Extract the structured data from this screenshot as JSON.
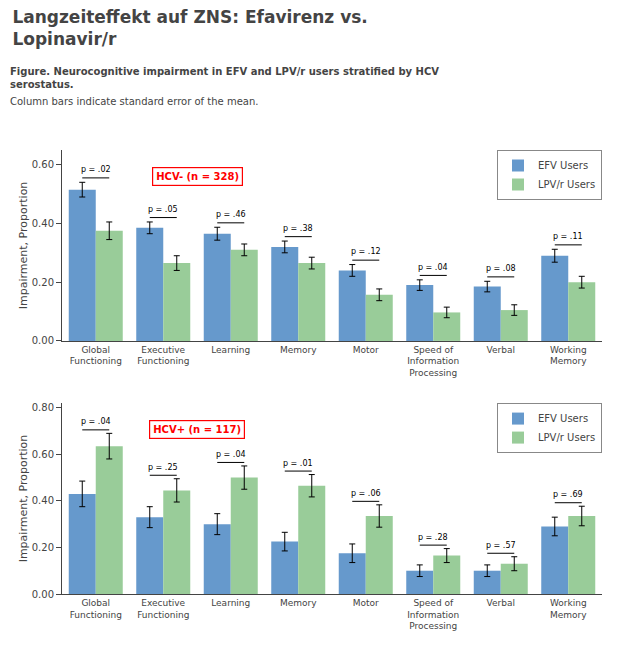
{
  "title": "Langzeiteffekt auf ZNS: Efavirenz vs.\nLopinavir/r",
  "subtitle": "Figure. Neurocognitive impairment in EFV and LPV/r users stratified by HCV\nserostatus.",
  "annotations": [
    "Column bars indicate standard error of the mean."
  ],
  "chart_data": [
    {
      "type": "bar",
      "categories": [
        "Global\nFunctioning",
        "Executive\nFunctioning",
        "Learning",
        "Memory",
        "Motor",
        "Speed of\nInformation\nProcessing",
        "Verbal",
        "Working\nMemory"
      ],
      "series": [
        {
          "name": "EFV Users",
          "color": "#6699CC",
          "values": [
            0.515,
            0.385,
            0.365,
            0.32,
            0.24,
            0.19,
            0.185,
            0.29
          ],
          "errors": [
            0.025,
            0.02,
            0.022,
            0.02,
            0.02,
            0.018,
            0.018,
            0.022
          ]
        },
        {
          "name": "LPV/r Users",
          "color": "#99CC99",
          "values": [
            0.375,
            0.265,
            0.31,
            0.265,
            0.157,
            0.097,
            0.105,
            0.2
          ],
          "errors": [
            0.03,
            0.025,
            0.02,
            0.02,
            0.02,
            0.018,
            0.018,
            0.02
          ]
        }
      ],
      "p_values": [
        "p = .02",
        "p = .05",
        "p = .46",
        "p = .38",
        "p = .12",
        "p = .04",
        "p = .08",
        "p = .11"
      ],
      "annotations": [
        {
          "text": "HCV- (n = 328)",
          "color": "red"
        }
      ],
      "ylabel": "Impairment, Proportion",
      "ylim": [
        0.0,
        0.65
      ],
      "yticks": [
        {
          "value": 0.0,
          "label": "0.00"
        },
        {
          "value": 0.2,
          "label": "0.20"
        },
        {
          "value": 0.4,
          "label": "0.40"
        },
        {
          "value": 0.6,
          "label": "0.60"
        }
      ],
      "grid": false,
      "legend": "upper right"
    },
    {
      "type": "bar",
      "categories": [
        "Global\nFunctioning",
        "Executive\nFunctioning",
        "Learning",
        "Memory",
        "Motor",
        "Speed of\nInformation\nProcessing",
        "Verbal",
        "Working\nMemory"
      ],
      "series": [
        {
          "name": "EFV Users",
          "color": "#6699CC",
          "values": [
            0.43,
            0.33,
            0.3,
            0.225,
            0.175,
            0.1,
            0.1,
            0.29
          ],
          "errors": [
            0.055,
            0.045,
            0.045,
            0.04,
            0.04,
            0.025,
            0.025,
            0.04
          ]
        },
        {
          "name": "LPV/r Users",
          "color": "#99CC99",
          "values": [
            0.635,
            0.445,
            0.5,
            0.465,
            0.335,
            0.165,
            0.13,
            0.335
          ],
          "errors": [
            0.055,
            0.05,
            0.05,
            0.048,
            0.048,
            0.03,
            0.03,
            0.042
          ]
        }
      ],
      "p_values": [
        "p = .04",
        "p = .25",
        "p = .04",
        "p = .01",
        "p = .06",
        "p = .28",
        "p = .57",
        "p = .69"
      ],
      "annotations": [
        {
          "text": "HCV+ (n = 117)",
          "color": "red"
        }
      ],
      "ylabel": "Impairment, Proportion",
      "ylim": [
        0.0,
        0.82
      ],
      "yticks": [
        {
          "value": 0.0,
          "label": "0.00"
        },
        {
          "value": 0.2,
          "label": "0.20"
        },
        {
          "value": 0.4,
          "label": "0.40"
        },
        {
          "value": 0.6,
          "label": "0.60"
        },
        {
          "value": 0.8,
          "label": "0.80"
        }
      ],
      "grid": false,
      "legend": "upper right"
    }
  ]
}
